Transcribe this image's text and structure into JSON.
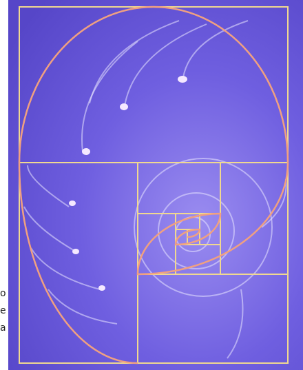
{
  "text_fragments": [
    "o",
    "e",
    "a"
  ]
}
